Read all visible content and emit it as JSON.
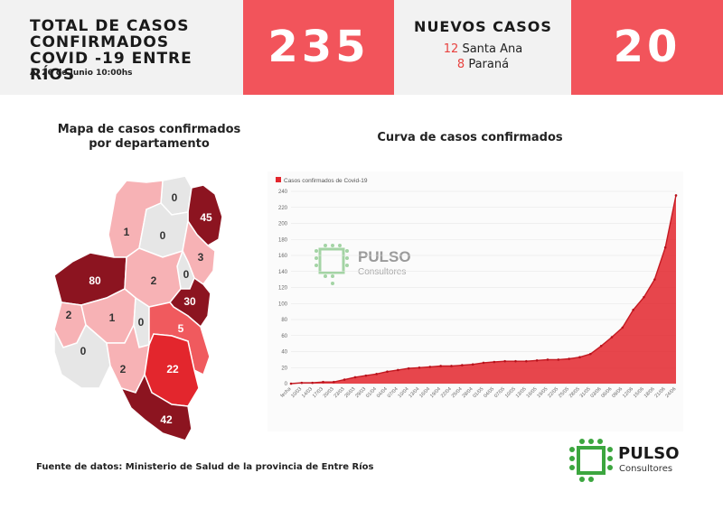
{
  "header": {
    "title": "TOTAL DE CASOS\nCONFIRMADOS\nCOVID -19 ENTRE RÍOS",
    "date": "Al 26 de Junio 10:00hs",
    "total": "235",
    "new_title": "NUEVOS CASOS",
    "new_items": [
      {
        "num": "12",
        "place": "Santa Ana"
      },
      {
        "num": "8",
        "place": "Paraná"
      }
    ],
    "new_total": "20"
  },
  "map": {
    "title": "Mapa de casos confirmados\npor departamento",
    "departments": [
      {
        "name": "dept-north-a",
        "cases": "0"
      },
      {
        "name": "dept-northeast",
        "cases": "45"
      },
      {
        "name": "dept-north-west",
        "cases": "1"
      },
      {
        "name": "dept-north-center",
        "cases": "0"
      },
      {
        "name": "dept-east-upper",
        "cases": "3"
      },
      {
        "name": "dept-east-strip",
        "cases": "0"
      },
      {
        "name": "dept-parana",
        "cases": "80"
      },
      {
        "name": "dept-center",
        "cases": "2"
      },
      {
        "name": "dept-east-mid",
        "cases": "30"
      },
      {
        "name": "dept-west-low",
        "cases": "2"
      },
      {
        "name": "dept-center-low",
        "cases": "1"
      },
      {
        "name": "dept-center-strip",
        "cases": "0"
      },
      {
        "name": "dept-east-low",
        "cases": "5"
      },
      {
        "name": "dept-southwest",
        "cases": "0"
      },
      {
        "name": "dept-south-center",
        "cases": "2"
      },
      {
        "name": "dept-southeast",
        "cases": "22"
      },
      {
        "name": "dept-south",
        "cases": "42"
      }
    ],
    "colors": {
      "zero": "#e6e6e6",
      "low": "#f7b2b5",
      "mid": "#f05a5e",
      "high": "#e3262d",
      "top": "#8c1420"
    }
  },
  "curve_title": "Curva de casos confirmados",
  "chart_data": {
    "type": "area",
    "legend": "Casos confirmados de Covid-19",
    "ylim": [
      0,
      240
    ],
    "yticks": [
      0,
      20,
      40,
      60,
      80,
      100,
      120,
      140,
      160,
      180,
      200,
      220,
      240
    ],
    "color": "#e3262d",
    "x": [
      "fecha",
      "10/03",
      "14/03",
      "17/03",
      "20/03",
      "23/03",
      "26/03",
      "29/03",
      "01/04",
      "04/04",
      "07/04",
      "10/04",
      "13/04",
      "16/04",
      "19/04",
      "22/04",
      "25/04",
      "28/04",
      "01/05",
      "04/05",
      "07/05",
      "10/05",
      "13/05",
      "16/05",
      "19/05",
      "22/05",
      "25/05",
      "28/05",
      "31/05",
      "03/06",
      "06/06",
      "09/06",
      "12/06",
      "15/06",
      "18/06",
      "21/06",
      "24/06"
    ],
    "values": [
      0,
      1,
      1,
      2,
      2,
      5,
      8,
      10,
      12,
      15,
      17,
      19,
      20,
      21,
      22,
      22,
      23,
      24,
      26,
      27,
      28,
      28,
      28,
      29,
      30,
      30,
      31,
      33,
      37,
      47,
      58,
      70,
      92,
      108,
      130,
      170,
      235
    ]
  },
  "watermark": {
    "name": "PULSO",
    "sub": "Consultores"
  },
  "logo": {
    "name": "PULSO",
    "sub": "Consultores",
    "color": "#3ca63f"
  },
  "source": "Fuente de datos: Ministerio de Salud de la provincia de Entre Ríos"
}
